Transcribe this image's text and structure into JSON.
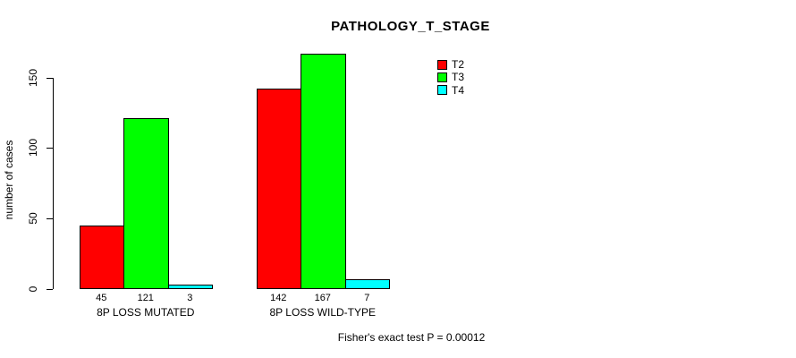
{
  "chart_data": {
    "type": "bar",
    "title": "PATHOLOGY_T_STAGE",
    "xlabel": "",
    "ylabel": "number of cases",
    "categories": [
      "8P LOSS MUTATED",
      "8P LOSS WILD-TYPE"
    ],
    "series": [
      {
        "name": "T2",
        "color": "#ff0000",
        "values": [
          45,
          142
        ]
      },
      {
        "name": "T3",
        "color": "#00ff00",
        "values": [
          121,
          167
        ]
      },
      {
        "name": "T4",
        "color": "#00ffff",
        "values": [
          3,
          7
        ]
      }
    ],
    "yticks": [
      0,
      50,
      100,
      150
    ],
    "ylim": [
      0,
      170
    ],
    "grid": false,
    "legend_position": "top-right",
    "bar_value_labels": true,
    "annotation": "Fisher's exact test P = 0.00012"
  }
}
